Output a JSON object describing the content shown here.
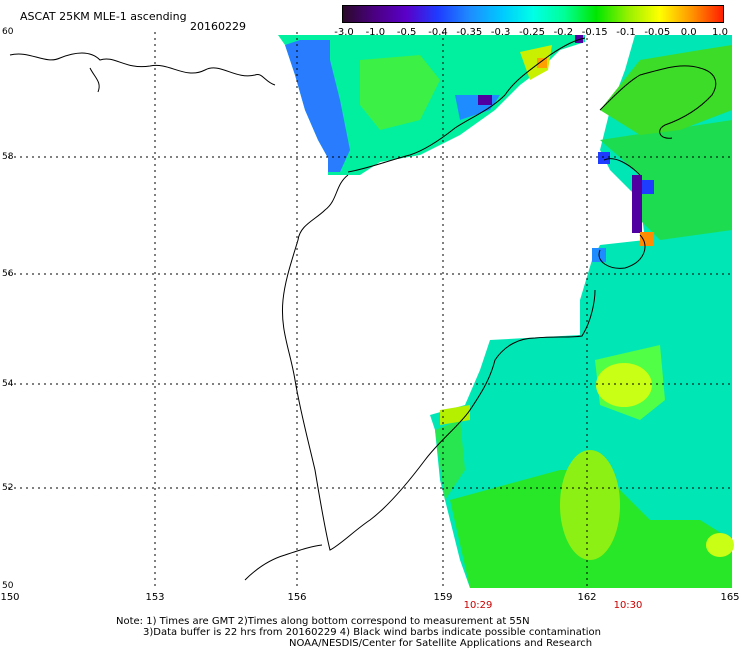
{
  "title": "ASCAT 25KM MLE-1 ascending",
  "date": "20160229",
  "colorbar": {
    "labels": [
      "-3.0",
      "-1.0",
      "-0.5",
      "-0.4",
      "-0.35",
      "-0.3",
      "-0.25",
      "-0.2",
      "-0.15",
      "-0.1",
      "-0.05",
      "0.0",
      "1.0"
    ],
    "colors": [
      "#2a0a2a",
      "#4b0082",
      "#5a00c8",
      "#1e3cff",
      "#1e8cff",
      "#00c8ff",
      "#00ffe6",
      "#00ff96",
      "#00e600",
      "#96f000",
      "#ffff00",
      "#ff9600",
      "#ff1e00"
    ]
  },
  "axes": {
    "lat_labels": [
      "60",
      "58",
      "56",
      "54",
      "52",
      "50"
    ],
    "lon_labels": [
      "150",
      "153",
      "156",
      "159",
      "162",
      "165"
    ]
  },
  "pass_times": [
    "10:29",
    "10:30"
  ],
  "notes": [
    "Note: 1) Times are GMT 2)Times along bottom correspond to measurement at 55N",
    "3)Data buffer is 22 hrs from 20160229 4) Black wind barbs indicate possible contamination",
    "NOAA/NESDIS/Center for Satellite Applications and Research"
  ]
}
